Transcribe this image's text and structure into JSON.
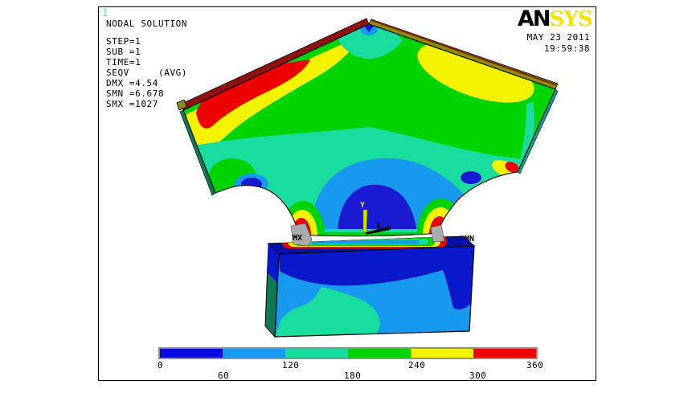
{
  "plot_number": "1",
  "solution_info": {
    "title": "NODAL SOLUTION",
    "lines": [
      "STEP=1",
      "SUB =1",
      "TIME=1",
      "SEQV     (AVG)",
      "DMX =4.54",
      "SMN =6.678",
      "SMX =1027"
    ]
  },
  "branding": {
    "logo_black": "AN",
    "logo_yellow": "SYS",
    "date": "MAY 23 2011",
    "time": "19:59:38"
  },
  "markers": {
    "max_label": "MX",
    "min_label": "MN"
  },
  "triad": {
    "y_label": "Y",
    "x_label": "X"
  },
  "legend": {
    "tick_labels": [
      "0",
      "60",
      "120",
      "180",
      "240",
      "300",
      "360"
    ]
  },
  "chart_data": {
    "type": "heatmap",
    "subtype": "fea-contour-plot",
    "title": "NODAL SOLUTION",
    "quantity": "SEQV (AVG) von Mises equivalent stress",
    "analysis": {
      "step": 1,
      "substep": 1,
      "time": 1,
      "dmx": 4.54,
      "smn": 6.678,
      "smx": 1027
    },
    "legend_bounds": [
      0,
      60,
      120,
      180,
      240,
      300,
      360
    ],
    "band_colors": [
      "#0a0ae0",
      "#1899f0",
      "#19dd9e",
      "#00d400",
      "#f4f400",
      "#ec0000"
    ],
    "legend_position": "bottom-horizontal",
    "annotations": [
      "MX at lower-left contact notch",
      "MN on top face of base block",
      "coordinate triad Y up / X right at contact center"
    ],
    "scene": "Pentagonal clamp plate with two circular relief notches resting on a rectangular base block; stress concentrations (red/yellow) at notch roots and upper-left edge, low stress (blue) at center dome and base block"
  }
}
